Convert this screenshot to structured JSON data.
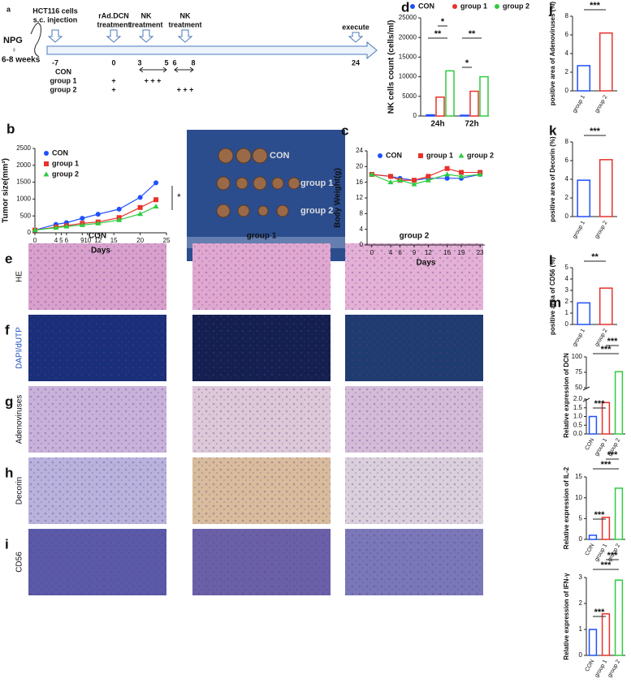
{
  "timeline": {
    "panel": "a",
    "mouse": [
      "NPG",
      "♀",
      "6-8 weeks"
    ],
    "events": [
      "HCT116 cells",
      "s.c. injection",
      "rAd.DCN",
      "treatment",
      "NK",
      "treatment",
      "NK",
      "treatment",
      "execute"
    ],
    "days": [
      -7,
      0,
      3,
      5,
      6,
      8,
      24
    ],
    "groups": [
      "CON",
      "group 1",
      "group 2"
    ],
    "marks": [
      "+",
      "+ + +",
      "+",
      "+ + +"
    ]
  },
  "photo": {
    "labels": [
      "CON",
      "group 1",
      "group 2"
    ]
  },
  "histology": {
    "panels": [
      "e",
      "f",
      "g",
      "h",
      "i"
    ],
    "rows": [
      "HE",
      "DAPI/dUTP",
      "Adenoviruses",
      "Decorin",
      "CD56"
    ],
    "columns": [
      "CON",
      "group 1",
      "group 2"
    ]
  },
  "chart_data": [
    {
      "type": "line",
      "panel": "b",
      "xlabel": "Days",
      "ylabel": "Tumor size(mm³)",
      "x": [
        0,
        4,
        6,
        9,
        12,
        16,
        20,
        23
      ],
      "xlim": [
        0,
        25
      ],
      "xticks": [
        0,
        4,
        5,
        6,
        9,
        10,
        12,
        15,
        20,
        25
      ],
      "ylim": [
        0,
        2500
      ],
      "yticks": [
        0,
        500,
        1000,
        1500,
        2000,
        2500
      ],
      "legend": "upper left",
      "series": [
        {
          "name": "CON",
          "color": "#1f4fff",
          "values": [
            80,
            250,
            300,
            430,
            550,
            700,
            1050,
            1480
          ]
        },
        {
          "name": "group 1",
          "color": "#e8322a",
          "values": [
            80,
            170,
            210,
            280,
            320,
            450,
            750,
            980
          ]
        },
        {
          "name": "group 2",
          "color": "#2ecc40",
          "values": [
            80,
            150,
            190,
            230,
            280,
            380,
            560,
            780
          ]
        }
      ],
      "annotations": [
        "*"
      ]
    },
    {
      "type": "line",
      "panel": "c",
      "xlabel": "Days",
      "ylabel": "Body  Weight(g)",
      "x": [
        0,
        4,
        6,
        9,
        12,
        16,
        19,
        23
      ],
      "xlim": [
        -1,
        24
      ],
      "xticks": [
        0,
        4,
        6,
        9,
        12,
        16,
        19,
        23
      ],
      "ylim": [
        0,
        24
      ],
      "yticks": [
        0,
        4,
        8,
        12,
        16,
        20,
        24
      ],
      "legend": "upper center",
      "series": [
        {
          "name": "CON",
          "color": "#1f4fff",
          "values": [
            18,
            17.5,
            17,
            16.5,
            17,
            17,
            17,
            18
          ]
        },
        {
          "name": "group 1",
          "color": "#e8322a",
          "values": [
            18,
            17.5,
            16.5,
            16.5,
            17.5,
            19.5,
            18.5,
            18.5
          ]
        },
        {
          "name": "group 2",
          "color": "#2ecc40",
          "values": [
            18,
            16,
            16.5,
            15.5,
            16.5,
            18,
            17.5,
            18
          ]
        }
      ]
    },
    {
      "type": "bar",
      "panel": "d",
      "ylabel": "NK cells count (cells/ml)",
      "categories": [
        "24h",
        "72h"
      ],
      "ylim": [
        0,
        25000
      ],
      "yticks": [
        0,
        5000,
        10000,
        15000,
        20000,
        25000
      ],
      "legend": "top",
      "series": [
        {
          "name": "CON",
          "color": "#1f4fff",
          "values": [
            300,
            200
          ]
        },
        {
          "name": "group 1",
          "color": "#e8322a",
          "values": [
            4800,
            6300
          ]
        },
        {
          "name": "group 2",
          "color": "#2ecc40",
          "values": [
            11500,
            10000
          ]
        }
      ],
      "annotations": [
        "**",
        "*",
        "*",
        "**"
      ]
    },
    {
      "type": "bar",
      "panel": "j",
      "ylabel": "positive area of Adenoviruses (%)",
      "categories": [
        "group 1",
        "group 2"
      ],
      "values": [
        2.7,
        6.2
      ],
      "colors": [
        "#1f4fff",
        "#e8322a"
      ],
      "ylim": [
        0,
        8
      ],
      "yticks": [
        0,
        2,
        4,
        6,
        8
      ],
      "rotate_xticks": true,
      "annotations": [
        "***"
      ]
    },
    {
      "type": "bar",
      "panel": "k",
      "ylabel": "positive area of Decorin (%)",
      "categories": [
        "group 1",
        "group 2"
      ],
      "values": [
        3.9,
        6.1
      ],
      "colors": [
        "#1f4fff",
        "#e8322a"
      ],
      "ylim": [
        0,
        8
      ],
      "yticks": [
        0,
        2,
        4,
        6,
        8
      ],
      "rotate_xticks": true,
      "annotations": [
        "***"
      ]
    },
    {
      "type": "bar",
      "panel": "l",
      "ylabel": "positive area of CD56 (%)",
      "categories": [
        "group 1",
        "group 2"
      ],
      "values": [
        1.9,
        3.2
      ],
      "colors": [
        "#1f4fff",
        "#e8322a"
      ],
      "ylim": [
        0,
        5
      ],
      "yticks": [
        0,
        1,
        2,
        3,
        4,
        5
      ],
      "rotate_xticks": true,
      "annotations": [
        "**"
      ]
    },
    {
      "type": "bar",
      "panel": "m",
      "ylabel": "Relative expression of DCN",
      "categories": [
        "CON",
        "group 1",
        "group 2"
      ],
      "values": [
        1.0,
        1.8,
        76
      ],
      "colors": [
        "#1f4fff",
        "#e8322a",
        "#2ecc40"
      ],
      "ylim": [
        0,
        100
      ],
      "ybreak": [
        2,
        50
      ],
      "yticks": [
        {
          "value": 0,
          "label": "0.0"
        },
        0.5,
        {
          "value": 1,
          "label": "1.0"
        },
        1.5,
        {
          "value": 2,
          "label": "2.0"
        },
        50,
        75,
        100
      ],
      "rotate_xticks": true,
      "annotations": [
        "***",
        "***",
        "***"
      ]
    },
    {
      "type": "bar",
      "ylabel": "Relative expression of IL-2",
      "categories": [
        "CON",
        "group 1",
        "group 2"
      ],
      "values": [
        1.0,
        5.3,
        12.3
      ],
      "colors": [
        "#1f4fff",
        "#e8322a",
        "#2ecc40"
      ],
      "ylim": [
        0,
        15
      ],
      "yticks": [
        0,
        5,
        10,
        15
      ],
      "rotate_xticks": true,
      "annotations": [
        "***",
        "***",
        "***"
      ]
    },
    {
      "type": "bar",
      "ylabel": "Relative expression of IFN-γ",
      "categories": [
        "CON",
        "group 1",
        "group 2"
      ],
      "values": [
        1.0,
        1.6,
        2.9
      ],
      "colors": [
        "#1f4fff",
        "#e8322a",
        "#2ecc40"
      ],
      "ylim": [
        0,
        3
      ],
      "yticks": [
        0,
        1,
        2,
        3
      ],
      "rotate_xticks": true,
      "annotations": [
        "***",
        "***",
        "***"
      ]
    }
  ]
}
